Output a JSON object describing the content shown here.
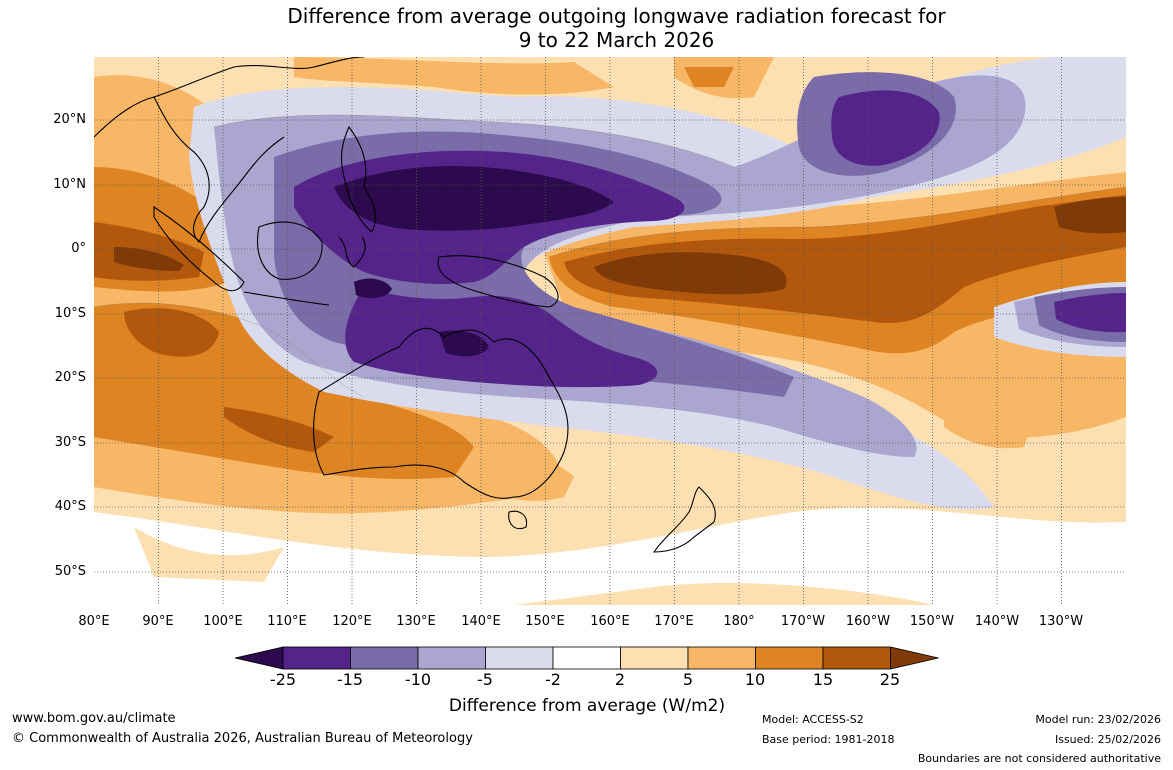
{
  "title": {
    "line1": "Difference from average outgoing longwave radiation forecast for",
    "line2": "9 to 22 March 2026"
  },
  "axes": {
    "latitudes": [
      "20°N",
      "10°N",
      "0°",
      "10°S",
      "20°S",
      "30°S",
      "40°S",
      "50°S"
    ],
    "longitudes": [
      "80°E",
      "90°E",
      "100°E",
      "110°E",
      "120°E",
      "130°E",
      "140°E",
      "150°E",
      "160°E",
      "170°E",
      "180°",
      "170°W",
      "160°W",
      "150°W",
      "140°W",
      "130°W"
    ]
  },
  "colorbar": {
    "title": "Difference from average (W/m2)",
    "ticks": [
      "-25",
      "-15",
      "-10",
      "-5",
      "-2",
      "2",
      "5",
      "10",
      "15",
      "25"
    ],
    "colors": {
      "below_min": "#2d0a4e",
      "bins": [
        "#55248a",
        "#7a6ca8",
        "#aba6cf",
        "#dadbec",
        "#ffffff",
        "#fde0b2",
        "#f8b667",
        "#df8422",
        "#b1580d"
      ],
      "above_max": "#7f3a08"
    }
  },
  "footer": {
    "url": "www.bom.gov.au/climate",
    "copyright": "© Commonwealth of Australia 2026, Australian Bureau of Meteorology",
    "model": "Model: ACCESS-S2",
    "base_period": "Base period: 1981-2018",
    "model_run": "Model run: 23/02/2026",
    "issued": "Issued: 25/02/2026",
    "disclaimer": "Boundaries are not considered authoritative"
  },
  "map_data": {
    "type": "filled-contour",
    "extent": {
      "lon": [
        80,
        240
      ],
      "lat": [
        -55,
        30
      ]
    },
    "features": [
      {
        "name": "equatorial-pacific-positive",
        "level": "15 to 25",
        "max_level": ">25"
      },
      {
        "name": "maritime-continent-negative",
        "level": "-25 to -15",
        "min_level": "<-25"
      },
      {
        "name": "northern-australia-negative",
        "level": "-25 to -15"
      },
      {
        "name": "hawaii-negative",
        "level": "-25 to -15"
      },
      {
        "name": "south-pacific-negative",
        "level": "-25 to -15"
      },
      {
        "name": "indian-ocean-positive",
        "level": "10 to 15"
      }
    ]
  }
}
